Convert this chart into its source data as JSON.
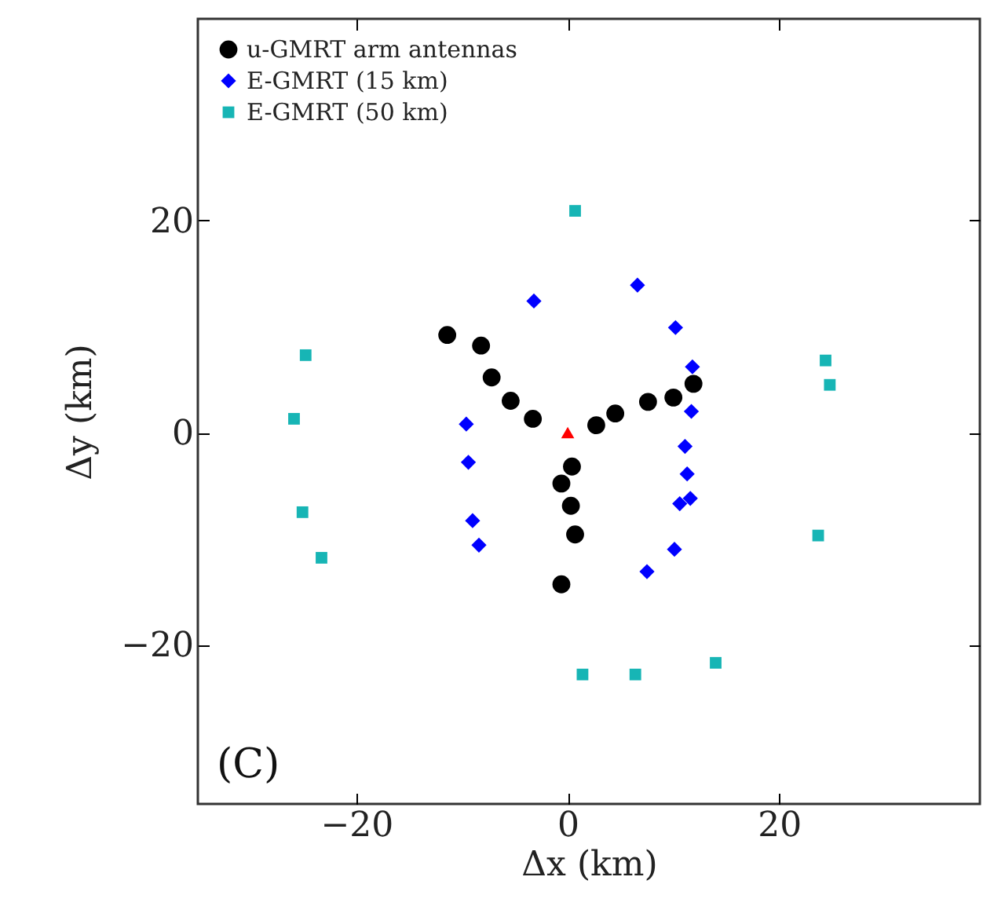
{
  "chart_data": {
    "type": "scatter",
    "xlabel": "Δx (km)",
    "ylabel": "Δy (km)",
    "xlim": [
      -35,
      39
    ],
    "ylim": [
      -35,
      39
    ],
    "xticks": [
      -20,
      0,
      20
    ],
    "yticks": [
      -20,
      0,
      20
    ],
    "grid": false,
    "legend": "top left",
    "annotations": [
      "(C)"
    ],
    "series": [
      {
        "name": "u-GMRT arm antennas",
        "color": "#000000",
        "marker": "circle",
        "x": [
          -11.4,
          -8.2,
          -7.2,
          -5.4,
          -3.3,
          2.7,
          4.5,
          7.6,
          10.0,
          11.9,
          0.4,
          -0.6,
          0.3,
          0.7,
          -0.6
        ],
        "values": [
          9.2,
          8.2,
          5.2,
          3.0,
          1.3,
          0.7,
          1.8,
          2.9,
          3.3,
          4.6,
          -3.2,
          -4.8,
          -6.9,
          -9.6,
          -14.3
        ]
      },
      {
        "name": "E-GMRT (15 km)",
        "color": "#0000ff",
        "marker": "diamond",
        "x": [
          -3.2,
          6.6,
          10.2,
          11.8,
          11.7,
          -9.6,
          -9.4,
          11.1,
          11.3,
          11.6,
          10.6,
          -9.0,
          -8.4,
          10.1,
          7.5
        ],
        "values": [
          12.4,
          13.9,
          9.9,
          6.2,
          2.0,
          0.8,
          -2.8,
          -1.3,
          -3.9,
          -6.2,
          -6.7,
          -8.3,
          -10.6,
          -11.0,
          -13.1
        ]
      },
      {
        "name": "E-GMRT (50 km)",
        "color": "#17b5b5",
        "marker": "square",
        "x": [
          0.7,
          -24.8,
          24.4,
          24.8,
          -25.9,
          -25.1,
          -23.3,
          23.7,
          1.4,
          6.4,
          14.0
        ],
        "values": [
          20.9,
          7.3,
          6.8,
          4.5,
          1.3,
          -7.5,
          -11.8,
          -9.7,
          -22.8,
          -22.8,
          -21.7
        ]
      },
      {
        "color": "#ff0000",
        "marker": "triangle",
        "x": [
          0
        ],
        "values": [
          0
        ]
      }
    ]
  }
}
